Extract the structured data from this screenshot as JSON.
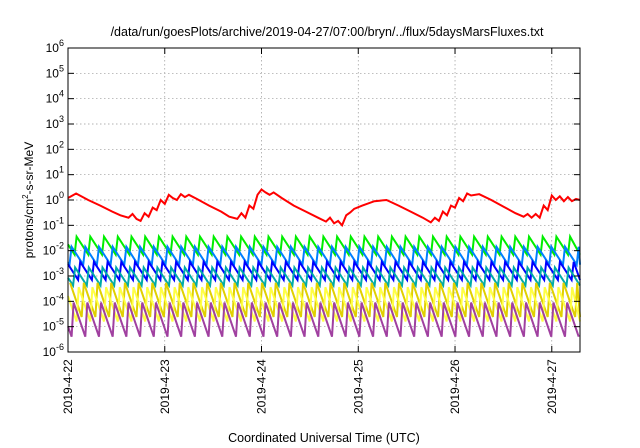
{
  "chart_data": {
    "type": "line",
    "title": "/data/run/goesPlots/archive/2019-04-27/07:00/bryn/../flux/5daysMarsFluxes.txt",
    "xlabel": "Coordinated Universal Time (UTC)",
    "ylabel": {
      "pre": "protons/cm",
      "sup": "2",
      "post": "-s-sr-MeV"
    },
    "yscale": "log",
    "ylim": [
      1e-06,
      1000000.0
    ],
    "y_ticks": [
      {
        "base": "10",
        "exp": "-6"
      },
      {
        "base": "10",
        "exp": "-5"
      },
      {
        "base": "10",
        "exp": "-4"
      },
      {
        "base": "10",
        "exp": "-3"
      },
      {
        "base": "10",
        "exp": "-2"
      },
      {
        "base": "10",
        "exp": "-1"
      },
      {
        "base": "10",
        "exp": "0"
      },
      {
        "base": "10",
        "exp": "1"
      },
      {
        "base": "10",
        "exp": "2"
      },
      {
        "base": "10",
        "exp": "3"
      },
      {
        "base": "10",
        "exp": "4"
      },
      {
        "base": "10",
        "exp": "5"
      },
      {
        "base": "10",
        "exp": "6"
      }
    ],
    "x_ticks": [
      "2019-4-22",
      "2019-4-23",
      "2019-4-24",
      "2019-4-25",
      "2019-4-26",
      "2019-4-27"
    ],
    "xlim": [
      "2019-04-22T00:00",
      "2019-04-27T07:00"
    ],
    "grid": true,
    "series": [
      {
        "color": "#ff0000",
        "approx_level": 0.8,
        "points": [
          [
            "2019-04-22T00:00",
            1.2
          ],
          [
            "2019-04-22T02:00",
            1.8
          ],
          [
            "2019-04-22T05:00",
            1.0
          ],
          [
            "2019-04-22T08:00",
            0.6
          ],
          [
            "2019-04-22T11:00",
            0.35
          ],
          [
            "2019-04-22T13:00",
            0.25
          ],
          [
            "2019-04-22T15:00",
            0.2
          ],
          [
            "2019-04-22T16:00",
            0.28
          ],
          [
            "2019-04-22T17:00",
            0.18
          ],
          [
            "2019-04-22T18:00",
            0.15
          ],
          [
            "2019-04-22T19:00",
            0.3
          ],
          [
            "2019-04-22T20:00",
            0.22
          ],
          [
            "2019-04-22T21:00",
            0.5
          ],
          [
            "2019-04-22T22:00",
            0.4
          ],
          [
            "2019-04-22T23:00",
            1.0
          ],
          [
            "2019-04-23T00:00",
            0.7
          ],
          [
            "2019-04-23T01:00",
            1.6
          ],
          [
            "2019-04-23T02:00",
            1.2
          ],
          [
            "2019-04-23T03:00",
            1.0
          ],
          [
            "2019-04-23T04:00",
            1.7
          ],
          [
            "2019-04-23T05:00",
            1.3
          ],
          [
            "2019-04-23T06:00",
            1.6
          ],
          [
            "2019-04-23T08:00",
            1.1
          ],
          [
            "2019-04-23T11:00",
            0.6
          ],
          [
            "2019-04-23T14:00",
            0.35
          ],
          [
            "2019-04-23T16:00",
            0.22
          ],
          [
            "2019-04-23T18:00",
            0.18
          ],
          [
            "2019-04-23T19:00",
            0.3
          ],
          [
            "2019-04-23T20:00",
            0.2
          ],
          [
            "2019-04-23T21:00",
            0.6
          ],
          [
            "2019-04-23T22:00",
            0.45
          ],
          [
            "2019-04-23T23:00",
            1.6
          ],
          [
            "2019-04-24T00:00",
            2.6
          ],
          [
            "2019-04-24T01:00",
            2.0
          ],
          [
            "2019-04-24T02:00",
            1.6
          ],
          [
            "2019-04-24T03:00",
            2.0
          ],
          [
            "2019-04-24T05:00",
            1.2
          ],
          [
            "2019-04-24T08:00",
            0.6
          ],
          [
            "2019-04-24T11:00",
            0.35
          ],
          [
            "2019-04-24T14:00",
            0.2
          ],
          [
            "2019-04-24T16:00",
            0.14
          ],
          [
            "2019-04-24T17:00",
            0.2
          ],
          [
            "2019-04-24T18:00",
            0.12
          ],
          [
            "2019-04-24T19:00",
            0.15
          ],
          [
            "2019-04-24T20:00",
            0.1
          ],
          [
            "2019-04-24T21:00",
            0.25
          ],
          [
            "2019-04-24T22:00",
            0.32
          ],
          [
            "2019-04-24T23:00",
            0.45
          ],
          [
            "2019-04-25T01:00",
            0.6
          ],
          [
            "2019-04-25T04:00",
            0.9
          ],
          [
            "2019-04-25T07:00",
            1.0
          ],
          [
            "2019-04-25T10:00",
            0.6
          ],
          [
            "2019-04-25T13:00",
            0.35
          ],
          [
            "2019-04-25T16:00",
            0.2
          ],
          [
            "2019-04-25T18:00",
            0.13
          ],
          [
            "2019-04-25T19:00",
            0.2
          ],
          [
            "2019-04-25T20:00",
            0.15
          ],
          [
            "2019-04-25T21:00",
            0.35
          ],
          [
            "2019-04-25T22:00",
            0.25
          ],
          [
            "2019-04-25T23:00",
            0.6
          ],
          [
            "2019-04-26T00:00",
            0.5
          ],
          [
            "2019-04-26T01:00",
            1.2
          ],
          [
            "2019-04-26T02:00",
            0.9
          ],
          [
            "2019-04-26T03:00",
            1.8
          ],
          [
            "2019-04-26T04:00",
            1.5
          ],
          [
            "2019-04-26T06:00",
            1.7
          ],
          [
            "2019-04-26T09:00",
            1.0
          ],
          [
            "2019-04-26T12:00",
            0.55
          ],
          [
            "2019-04-26T15:00",
            0.3
          ],
          [
            "2019-04-26T17:00",
            0.22
          ],
          [
            "2019-04-26T18:00",
            0.28
          ],
          [
            "2019-04-26T19:00",
            0.2
          ],
          [
            "2019-04-26T20:00",
            0.28
          ],
          [
            "2019-04-26T21:00",
            0.2
          ],
          [
            "2019-04-26T22:00",
            0.6
          ],
          [
            "2019-04-26T23:00",
            0.4
          ],
          [
            "2019-04-27T00:00",
            1.5
          ],
          [
            "2019-04-27T01:00",
            1.0
          ],
          [
            "2019-04-27T02:00",
            1.4
          ],
          [
            "2019-04-27T03:00",
            0.9
          ],
          [
            "2019-04-27T04:00",
            1.3
          ],
          [
            "2019-04-27T05:00",
            0.9
          ],
          [
            "2019-04-27T06:00",
            1.1
          ],
          [
            "2019-04-27T07:00",
            1.0
          ]
        ]
      },
      {
        "color": "#00ee00",
        "approx_level": 0.02
      },
      {
        "color": "#0080ff",
        "approx_level": 0.008
      },
      {
        "color": "#0000ff",
        "approx_level": 0.002
      },
      {
        "color": "#00aaaa",
        "approx_level": 0.0012
      },
      {
        "color": "#e0d000",
        "approx_level": 0.0003
      },
      {
        "color": "#ffff44",
        "approx_level": 0.0002
      },
      {
        "color": "#a040a0",
        "approx_level": 5e-05
      }
    ]
  }
}
